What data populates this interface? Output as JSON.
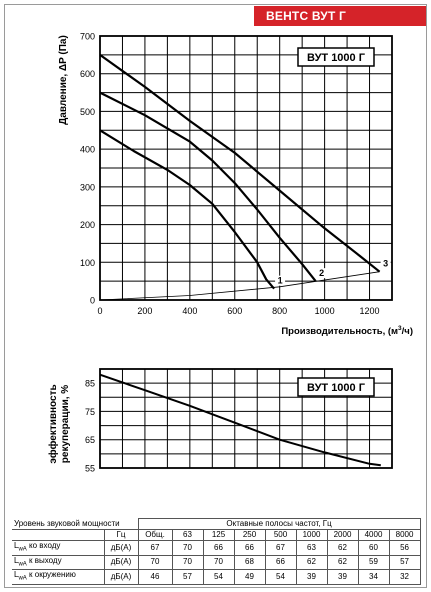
{
  "header": {
    "title": "ВЕНТС ВУТ Г"
  },
  "chart_data": [
    {
      "type": "line",
      "model_label": "ВУТ 1000 Г",
      "xlabel_main": "Производительность, (м",
      "xlabel_sup": "3",
      "xlabel_end": "/ч)",
      "ylabel": "Давление, ΔP (Па)",
      "xlim": [
        0,
        1300
      ],
      "ylim": [
        0,
        700
      ],
      "xticks": [
        0,
        200,
        400,
        600,
        800,
        1000,
        1200
      ],
      "yticks": [
        0,
        100,
        200,
        300,
        400,
        500,
        600,
        700
      ],
      "grid": true,
      "series": [
        {
          "name": "1",
          "points": [
            [
              0,
              450
            ],
            [
              150,
              395
            ],
            [
              300,
              345
            ],
            [
              400,
              305
            ],
            [
              500,
              255
            ],
            [
              600,
              180
            ],
            [
              700,
              100
            ],
            [
              740,
              55
            ],
            [
              775,
              30
            ]
          ]
        },
        {
          "name": "2",
          "points": [
            [
              0,
              550
            ],
            [
              200,
              490
            ],
            [
              400,
              420
            ],
            [
              500,
              370
            ],
            [
              600,
              310
            ],
            [
              700,
              240
            ],
            [
              800,
              165
            ],
            [
              900,
              95
            ],
            [
              960,
              50
            ]
          ]
        },
        {
          "name": "3",
          "points": [
            [
              0,
              650
            ],
            [
              200,
              565
            ],
            [
              400,
              475
            ],
            [
              600,
              390
            ],
            [
              800,
              290
            ],
            [
              1000,
              190
            ],
            [
              1150,
              120
            ],
            [
              1245,
              75
            ]
          ]
        },
        {
          "name": "",
          "points": [
            [
              0,
              0
            ],
            [
              400,
              12
            ],
            [
              800,
              35
            ],
            [
              1245,
              75
            ]
          ]
        }
      ]
    },
    {
      "type": "line",
      "model_label": "ВУТ 1000 Г",
      "ylabel_line1": "эффективность",
      "ylabel_line2": "рекуперации, %",
      "xlim": [
        0,
        1300
      ],
      "ylim": [
        55,
        90
      ],
      "yticks": [
        55,
        65,
        75,
        85
      ],
      "grid": true,
      "series": [
        {
          "name": "",
          "points": [
            [
              0,
              88
            ],
            [
              200,
              82.5
            ],
            [
              400,
              77
            ],
            [
              600,
              71
            ],
            [
              800,
              65
            ],
            [
              1000,
              60.5
            ],
            [
              1200,
              56.5
            ],
            [
              1250,
              56
            ]
          ]
        }
      ]
    }
  ],
  "sound_table": {
    "title": "Уровень звуковой мощности",
    "bands_title": "Октавные полосы частот, Гц",
    "header_unit": "Гц",
    "total_label": "Общ.",
    "bands": [
      "63",
      "125",
      "250",
      "500",
      "1000",
      "2000",
      "4000",
      "8000"
    ],
    "rows": [
      {
        "label_prefix": "L",
        "label_sub": "wA",
        "label_text": " ко входу",
        "unit": "дБ(А)",
        "total": "67",
        "values": [
          "70",
          "66",
          "66",
          "67",
          "63",
          "62",
          "60",
          "56"
        ]
      },
      {
        "label_prefix": "L",
        "label_sub": "wA",
        "label_text": " к выходу",
        "unit": "дБ(А)",
        "total": "70",
        "values": [
          "70",
          "70",
          "68",
          "66",
          "62",
          "62",
          "59",
          "57"
        ]
      },
      {
        "label_prefix": "L",
        "label_sub": "wA",
        "label_text": " к окружению",
        "unit": "дБ(А)",
        "total": "46",
        "values": [
          "57",
          "54",
          "49",
          "54",
          "39",
          "39",
          "34",
          "32"
        ]
      }
    ]
  }
}
